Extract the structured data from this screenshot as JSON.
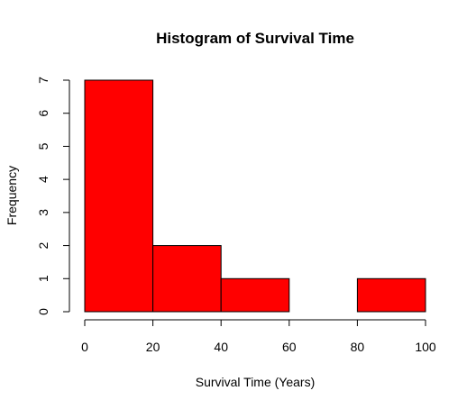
{
  "chart_data": {
    "type": "bar",
    "title": "Histogram of Survival Time",
    "xlabel": "Survival Time (Years)",
    "ylabel": "Frequency",
    "bins": [
      {
        "from": 0,
        "to": 20,
        "count": 7
      },
      {
        "from": 20,
        "to": 40,
        "count": 2
      },
      {
        "from": 40,
        "to": 60,
        "count": 1
      },
      {
        "from": 60,
        "to": 80,
        "count": 0
      },
      {
        "from": 80,
        "to": 100,
        "count": 1
      }
    ],
    "xlim": [
      0,
      100
    ],
    "ylim": [
      0,
      7
    ],
    "xticks": [
      0,
      20,
      40,
      60,
      80,
      100
    ],
    "yticks": [
      0,
      1,
      2,
      3,
      4,
      5,
      6,
      7
    ],
    "bar_color": "#ff0000",
    "edge_color": "#000000",
    "grid": false,
    "legend": "none"
  }
}
